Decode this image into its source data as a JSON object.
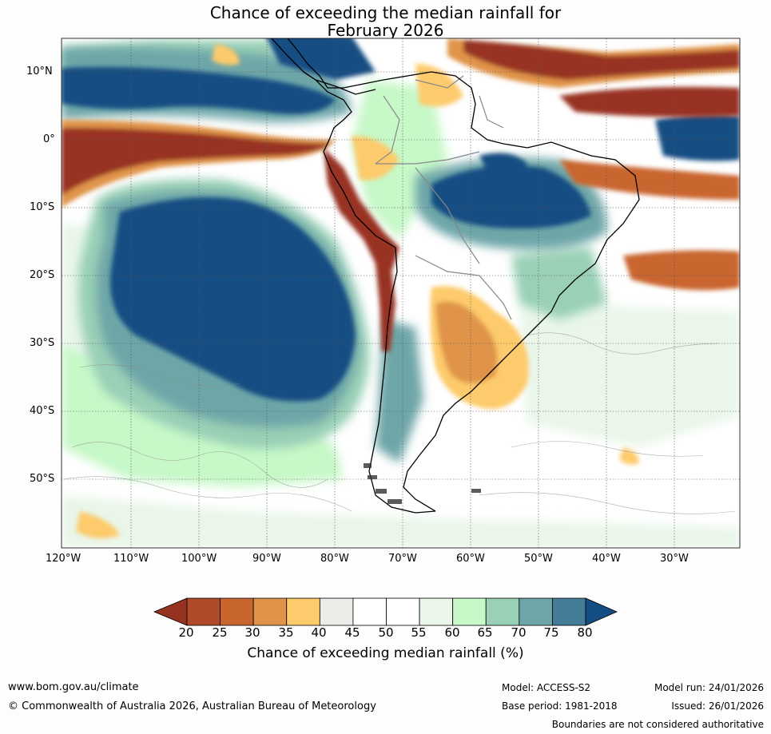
{
  "title": {
    "line1": "Chance of exceeding the median rainfall for",
    "line2": "February 2026"
  },
  "map": {
    "lat_labels": [
      "10°N",
      "0°",
      "10°S",
      "20°S",
      "30°S",
      "40°S",
      "50°S"
    ],
    "lon_labels": [
      "120°W",
      "110°W",
      "100°W",
      "90°W",
      "80°W",
      "70°W",
      "60°W",
      "50°W",
      "40°W",
      "30°W"
    ]
  },
  "colorbar": {
    "label": "Chance of exceeding median rainfall (%)",
    "ticks": [
      "20",
      "25",
      "30",
      "35",
      "40",
      "45",
      "50",
      "55",
      "60",
      "65",
      "70",
      "75",
      "80"
    ],
    "colors": [
      "#983220",
      "#b04a2a",
      "#c9652f",
      "#e0944a",
      "#fdcb6c",
      "#eeece8",
      "#ffffff",
      "#ffffff",
      "#e9f6e9",
      "#c6f8c8",
      "#99d0b6",
      "#6ea6a8",
      "#457d99",
      "#144d83"
    ]
  },
  "footer": {
    "website": "www.bom.gov.au/climate",
    "copyright": "© Commonwealth of Australia 2026, Australian Bureau of Meteorology",
    "model": "Model: ACCESS-S2",
    "base_period": "Base period: 1981-2018",
    "model_run": "Model run: 24/01/2026",
    "issued": "Issued: 26/01/2026",
    "disclaimer": "Boundaries are not considered authoritative"
  }
}
